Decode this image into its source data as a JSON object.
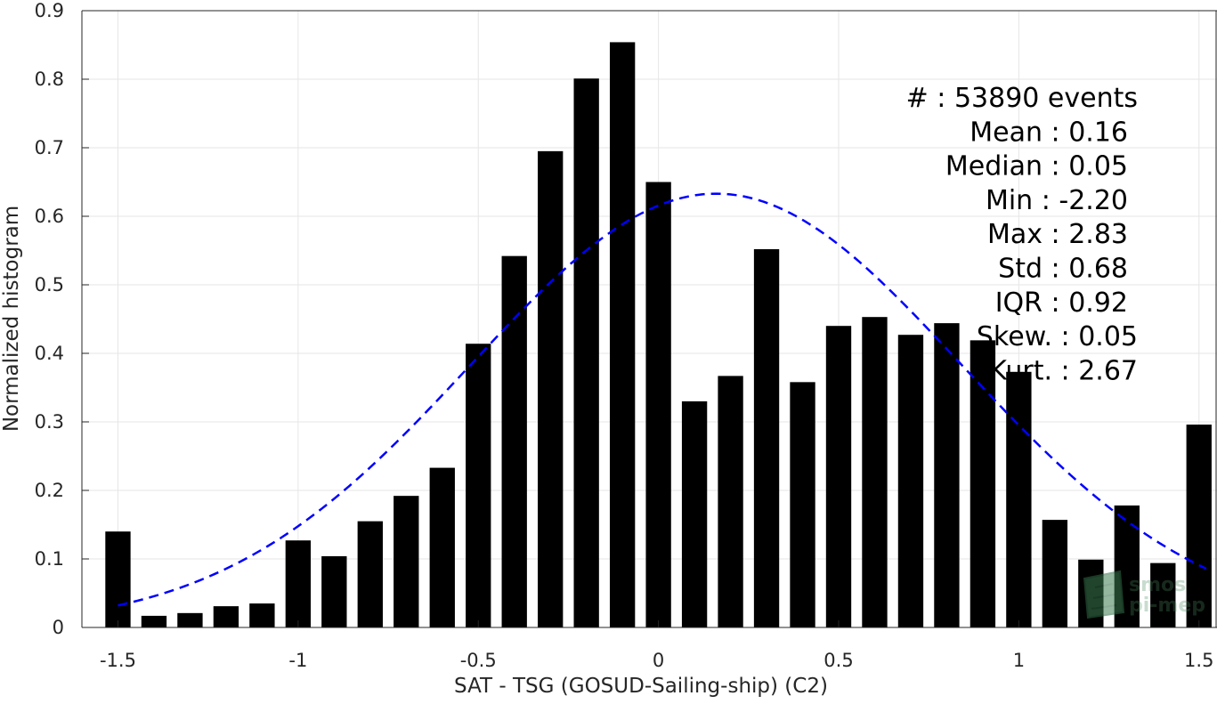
{
  "chart_data": {
    "type": "bar",
    "xlabel": "SAT - TSG (GOSUD-Sailing-ship) (C2)",
    "ylabel": "Normalized histogram",
    "xlim": [
      -1.6,
      1.55
    ],
    "ylim": [
      0,
      0.9
    ],
    "xticks": [
      -1.5,
      -1,
      -0.5,
      0,
      0.5,
      1,
      1.5
    ],
    "xtick_labels": [
      "-1.5",
      "-1",
      "-0.5",
      "0",
      "0.5",
      "1",
      "1.5"
    ],
    "yticks": [
      0,
      0.1,
      0.2,
      0.3,
      0.4,
      0.5,
      0.6,
      0.7,
      0.8,
      0.9
    ],
    "ytick_labels": [
      "0",
      "0.1",
      "0.2",
      "0.3",
      "0.4",
      "0.5",
      "0.6",
      "0.7",
      "0.8",
      "0.9"
    ],
    "grid": true,
    "bar_width": 0.07,
    "bars": {
      "x": [
        -1.5,
        -1.4,
        -1.3,
        -1.2,
        -1.1,
        -1.0,
        -0.9,
        -0.8,
        -0.7,
        -0.6,
        -0.5,
        -0.4,
        -0.3,
        -0.2,
        -0.1,
        0.0,
        0.1,
        0.2,
        0.3,
        0.4,
        0.5,
        0.6,
        0.7,
        0.8,
        0.9,
        1.0,
        1.1,
        1.2,
        1.3,
        1.4,
        1.5
      ],
      "values": [
        0.14,
        0.017,
        0.021,
        0.031,
        0.035,
        0.127,
        0.104,
        0.155,
        0.192,
        0.233,
        0.414,
        0.542,
        0.695,
        0.801,
        0.854,
        0.65,
        0.33,
        0.367,
        0.552,
        0.358,
        0.44,
        0.453,
        0.427,
        0.444,
        0.419,
        0.373,
        0.157,
        0.099,
        0.178,
        0.094,
        0.296
      ],
      "color": "#000000"
    },
    "fit_curve": {
      "kind": "normal",
      "mean": 0.16,
      "std": 0.68,
      "x_range": [
        -1.5,
        1.52
      ],
      "peak": 0.633,
      "color": "#0000ff",
      "style": "dashed"
    },
    "stats": [
      "#  : 53890 events",
      "Mean : 0.16",
      "Median : 0.05",
      "Min : -2.20",
      "Max : 2.83",
      "Std : 0.68",
      "IQR : 0.92",
      "Skew. : 0.05",
      "Kurt. : 2.67"
    ],
    "logo_lines": [
      "smos",
      "pi-mep"
    ]
  }
}
